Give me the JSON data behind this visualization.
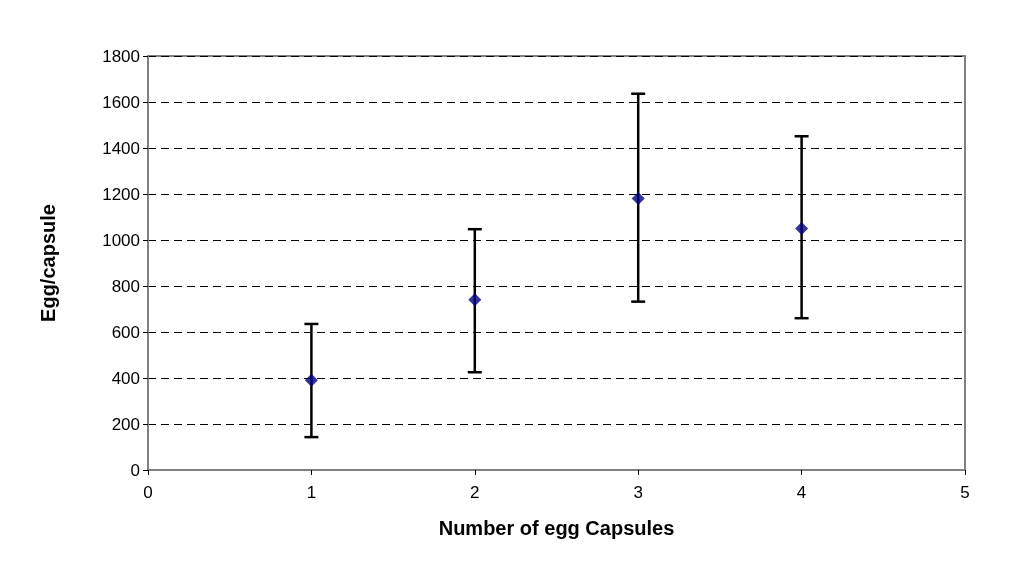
{
  "chart_data": {
    "type": "scatter",
    "xlabel": "Number of egg Capsules",
    "ylabel": "Egg/capsule",
    "x": [
      1,
      2,
      3,
      4
    ],
    "series": [
      {
        "color": "#000080",
        "values": [
          390,
          740,
          1180,
          1050
        ],
        "errors": [
          [
            143,
            635
          ],
          [
            425,
            1047
          ],
          [
            732,
            1636
          ],
          [
            660,
            1451
          ]
        ]
      }
    ],
    "xlim": [
      0,
      5
    ],
    "xticks": [
      0,
      1,
      2,
      3,
      4,
      5
    ],
    "ylim": [
      0,
      1800
    ],
    "yticks": [
      0,
      200,
      400,
      600,
      800,
      1000,
      1200,
      1400,
      1600,
      1800
    ],
    "grid": "y",
    "marker": "diamond"
  }
}
